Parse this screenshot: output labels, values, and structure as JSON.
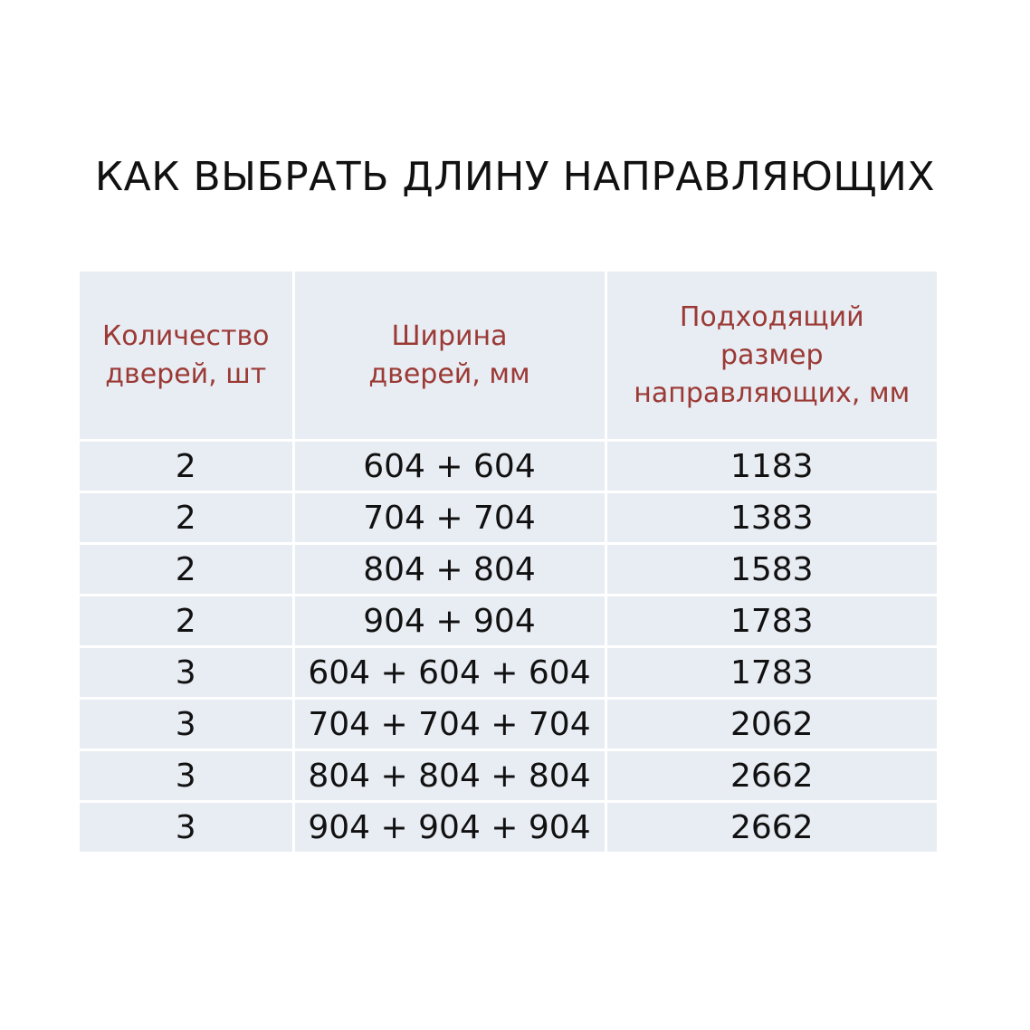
{
  "title": "КАК ВЫБРАТЬ ДЛИНУ НАПРАВЛЯЮЩИХ",
  "colors": {
    "header_text": "#9b3a35",
    "cell_bg": "#e8ecf3"
  },
  "table": {
    "headers": [
      [
        "Количество",
        "дверей, шт"
      ],
      [
        "Ширина",
        "дверей, мм"
      ],
      [
        "Подходящий",
        "размер",
        "направляющих, мм"
      ]
    ],
    "rows": [
      [
        "2",
        "604 + 604",
        "1183"
      ],
      [
        "2",
        "704 + 704",
        "1383"
      ],
      [
        "2",
        "804 + 804",
        "1583"
      ],
      [
        "2",
        "904 + 904",
        "1783"
      ],
      [
        "3",
        "604 + 604 + 604",
        "1783"
      ],
      [
        "3",
        "704 + 704 + 704",
        "2062"
      ],
      [
        "3",
        "804 + 804 + 804",
        "2662"
      ],
      [
        "3",
        "904 + 904 + 904",
        "2662"
      ]
    ]
  }
}
